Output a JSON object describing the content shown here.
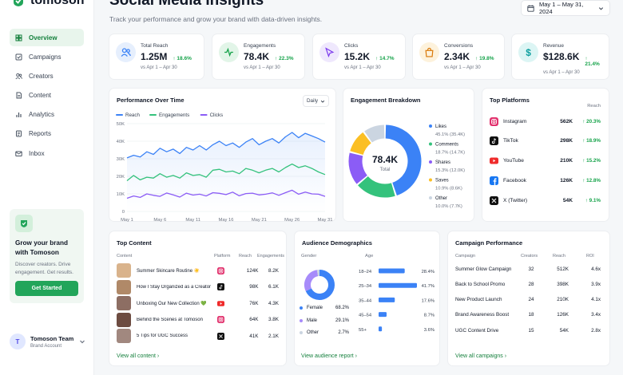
{
  "brand": {
    "name": "tomoson",
    "accent": "#22a55a"
  },
  "nav": [
    {
      "label": "Overview",
      "icon": "grid-icon",
      "active": true
    },
    {
      "label": "Campaigns",
      "icon": "checkbox-icon"
    },
    {
      "label": "Creators",
      "icon": "users-icon"
    },
    {
      "label": "Content",
      "icon": "document-icon"
    },
    {
      "label": "Analytics",
      "icon": "bar-chart-icon"
    },
    {
      "label": "Reports",
      "icon": "report-icon"
    },
    {
      "label": "Inbox",
      "icon": "mail-icon"
    }
  ],
  "promo": {
    "title": "Grow your brand with Tomoson",
    "desc": "Discover creators. Drive engagement. Get results.",
    "button": "Get Started"
  },
  "user": {
    "initial": "T",
    "name": "Tomoson Team",
    "role": "Brand Account"
  },
  "header": {
    "title": "Social Media Insights",
    "subtitle": "Track your performance and grow your brand with data-driven insights.",
    "date_range": "May 1 – May 31, 2024"
  },
  "kpis": [
    {
      "label": "Total Reach",
      "value": "1.25M",
      "delta": "↑ 18.6%",
      "compare": "vs Apr 1 – Apr 30",
      "icon": "users-icon",
      "color": "#3b82f6",
      "bg": "#e6effd"
    },
    {
      "label": "Engagements",
      "value": "78.4K",
      "delta": "↑ 22.3%",
      "compare": "vs Apr 1 – Apr 30",
      "icon": "pulse-icon",
      "color": "#16a34a",
      "bg": "#e2f5e8"
    },
    {
      "label": "Clicks",
      "value": "15.2K",
      "delta": "↑ 14.7%",
      "compare": "vs Apr 1 – Apr 30",
      "icon": "cursor-icon",
      "color": "#7c3aed",
      "bg": "#efe8fd"
    },
    {
      "label": "Conversions",
      "value": "2.34K",
      "delta": "↑ 19.8%",
      "compare": "vs Apr 1 – Apr 30",
      "icon": "shopping-bag-icon",
      "color": "#d97706",
      "bg": "#fdf2dc"
    },
    {
      "label": "Revenue",
      "value": "$128.6K",
      "delta": "↑ 21.4%",
      "compare": "vs Apr 1 – Apr 30",
      "icon": "dollar-icon",
      "color": "#0e9f9f",
      "bg": "#dcf5f4"
    }
  ],
  "performance": {
    "title": "Performance Over Time",
    "granularity": "Daily"
  },
  "chart_data": [
    {
      "type": "line",
      "title": "Performance Over Time",
      "x": [
        "May 1",
        "May 2",
        "May 3",
        "May 4",
        "May 5",
        "May 6",
        "May 7",
        "May 8",
        "May 9",
        "May 10",
        "May 11",
        "May 12",
        "May 13",
        "May 14",
        "May 15",
        "May 16",
        "May 17",
        "May 18",
        "May 19",
        "May 20",
        "May 21",
        "May 22",
        "May 23",
        "May 24",
        "May 25",
        "May 26",
        "May 27",
        "May 28",
        "May 29",
        "May 30",
        "May 31"
      ],
      "x_ticks": [
        "May 1",
        "May 6",
        "May 11",
        "May 16",
        "May 21",
        "May 26",
        "May 31"
      ],
      "y_ticks": [
        "0",
        "10K",
        "20K",
        "30K",
        "40K",
        "50K"
      ],
      "ylim": [
        0,
        50000
      ],
      "grid": true,
      "legend": "top-left",
      "series": [
        {
          "name": "Reach",
          "color": "#3b82f6",
          "values": [
            30500,
            32000,
            31000,
            34000,
            32500,
            36000,
            34000,
            35500,
            33000,
            36500,
            35000,
            37500,
            35000,
            38000,
            40000,
            37500,
            39000,
            36500,
            39500,
            41500,
            38000,
            40000,
            41500,
            39000,
            42500,
            45000,
            42000,
            44500,
            43000,
            41500,
            39500
          ]
        },
        {
          "name": "Engagements",
          "color": "#34c27c",
          "values": [
            17500,
            20500,
            18000,
            19500,
            19000,
            21500,
            19500,
            20500,
            19000,
            22000,
            20500,
            21000,
            19500,
            23500,
            24000,
            22500,
            23000,
            21500,
            24500,
            23500,
            22000,
            23500,
            24500,
            22500,
            25000,
            27000,
            25000,
            26000,
            24500,
            22500,
            21000
          ]
        },
        {
          "name": "Clicks",
          "color": "#8b5cf6",
          "values": [
            7500,
            8800,
            8000,
            10000,
            9200,
            8600,
            10500,
            9400,
            8200,
            10400,
            9300,
            9800,
            8800,
            10700,
            10300,
            9600,
            11000,
            8900,
            10200,
            10400,
            9400,
            9800,
            10600,
            9200,
            10700,
            12100,
            9800,
            11000,
            10000,
            9800,
            8600
          ]
        }
      ]
    },
    {
      "type": "pie",
      "title": "Engagement Breakdown",
      "center_value": "78.4K",
      "center_label": "Total",
      "slices": [
        {
          "label": "Likes",
          "percent": 45.1,
          "value": "35.4K",
          "color": "#3b82f6"
        },
        {
          "label": "Comments",
          "percent": 18.7,
          "value": "14.7K",
          "color": "#34c27c"
        },
        {
          "label": "Shares",
          "percent": 15.3,
          "value": "12.0K",
          "color": "#8b5cf6"
        },
        {
          "label": "Saves",
          "percent": 10.9,
          "value": "8.6K",
          "color": "#fbbf24"
        },
        {
          "label": "Other",
          "percent": 10.0,
          "value": "7.7K",
          "color": "#cbd5e1"
        }
      ]
    },
    {
      "type": "bar",
      "title": "Age",
      "categories": [
        "18–24",
        "25–34",
        "35–44",
        "45–54",
        "55+"
      ],
      "values": [
        28.4,
        41.7,
        17.6,
        8.7,
        3.6
      ],
      "color": "#3b82f6"
    }
  ],
  "engagement": {
    "title": "Engagement Breakdown"
  },
  "platforms": {
    "title": "Top Platforms",
    "col": "Reach",
    "rows": [
      {
        "name": "Instagram",
        "reach": "562K",
        "delta": "↑ 20.3%",
        "icon": "instagram-icon",
        "color": "#e1306c"
      },
      {
        "name": "TikTok",
        "reach": "298K",
        "delta": "↑ 18.9%",
        "icon": "tiktok-icon",
        "color": "#111111"
      },
      {
        "name": "YouTube",
        "reach": "210K",
        "delta": "↑ 15.2%",
        "icon": "youtube-icon",
        "color": "#ef2b2b"
      },
      {
        "name": "Facebook",
        "reach": "126K",
        "delta": "↑ 12.8%",
        "icon": "facebook-icon",
        "color": "#1877f2"
      },
      {
        "name": "X (Twitter)",
        "reach": "54K",
        "delta": "↑ 9.1%",
        "icon": "x-icon",
        "color": "#111111"
      }
    ]
  },
  "top_content": {
    "title": "Top Content",
    "headers": [
      "Content",
      "Platform",
      "Reach",
      "Engagements"
    ],
    "rows": [
      {
        "title": "Summer Skincare Routine ☀️",
        "platform": "instagram-icon",
        "reach": "124K",
        "eng": "8.2K",
        "thumb": "#d9b38c"
      },
      {
        "title": "How I Stay Organized as a Creator",
        "platform": "tiktok-icon",
        "reach": "98K",
        "eng": "6.1K",
        "thumb": "#b08968"
      },
      {
        "title": "Unboxing Our New Collection 💚",
        "platform": "youtube-icon",
        "reach": "76K",
        "eng": "4.3K",
        "thumb": "#8d6e63"
      },
      {
        "title": "Behind the Scenes at Tomoson",
        "platform": "instagram-icon",
        "reach": "64K",
        "eng": "3.8K",
        "thumb": "#6d4c41"
      },
      {
        "title": "5 Tips for UGC Success",
        "platform": "x-icon",
        "reach": "41K",
        "eng": "2.1K",
        "thumb": "#a1887f"
      }
    ],
    "link": "View all content"
  },
  "audience": {
    "title": "Audience Demographics",
    "gender_label": "Gender",
    "age_label": "Age",
    "gender": [
      {
        "label": "Female",
        "percent": "68.2%",
        "value": 68.2,
        "color": "#3b82f6"
      },
      {
        "label": "Male",
        "percent": "29.1%",
        "value": 29.1,
        "color": "#a78bfa"
      },
      {
        "label": "Other",
        "percent": "2.7%",
        "value": 2.7,
        "color": "#cbd5e1"
      }
    ],
    "age_labels": [
      "28.4%",
      "41.7%",
      "17.6%",
      "8.7%",
      "3.6%"
    ],
    "link": "View audience report"
  },
  "campaigns": {
    "title": "Campaign Performance",
    "headers": [
      "Campaign",
      "Creators",
      "Reach",
      "ROI"
    ],
    "rows": [
      {
        "name": "Summer Glow Campaign",
        "creators": "32",
        "reach": "512K",
        "roi": "4.6x"
      },
      {
        "name": "Back to School Promo",
        "creators": "28",
        "reach": "398K",
        "roi": "3.9x"
      },
      {
        "name": "New Product Launch",
        "creators": "24",
        "reach": "210K",
        "roi": "4.1x"
      },
      {
        "name": "Brand Awareness Boost",
        "creators": "18",
        "reach": "126K",
        "roi": "3.4x"
      },
      {
        "name": "UGC Content Drive",
        "creators": "15",
        "reach": "54K",
        "roi": "2.8x"
      }
    ],
    "link": "View all campaigns"
  }
}
